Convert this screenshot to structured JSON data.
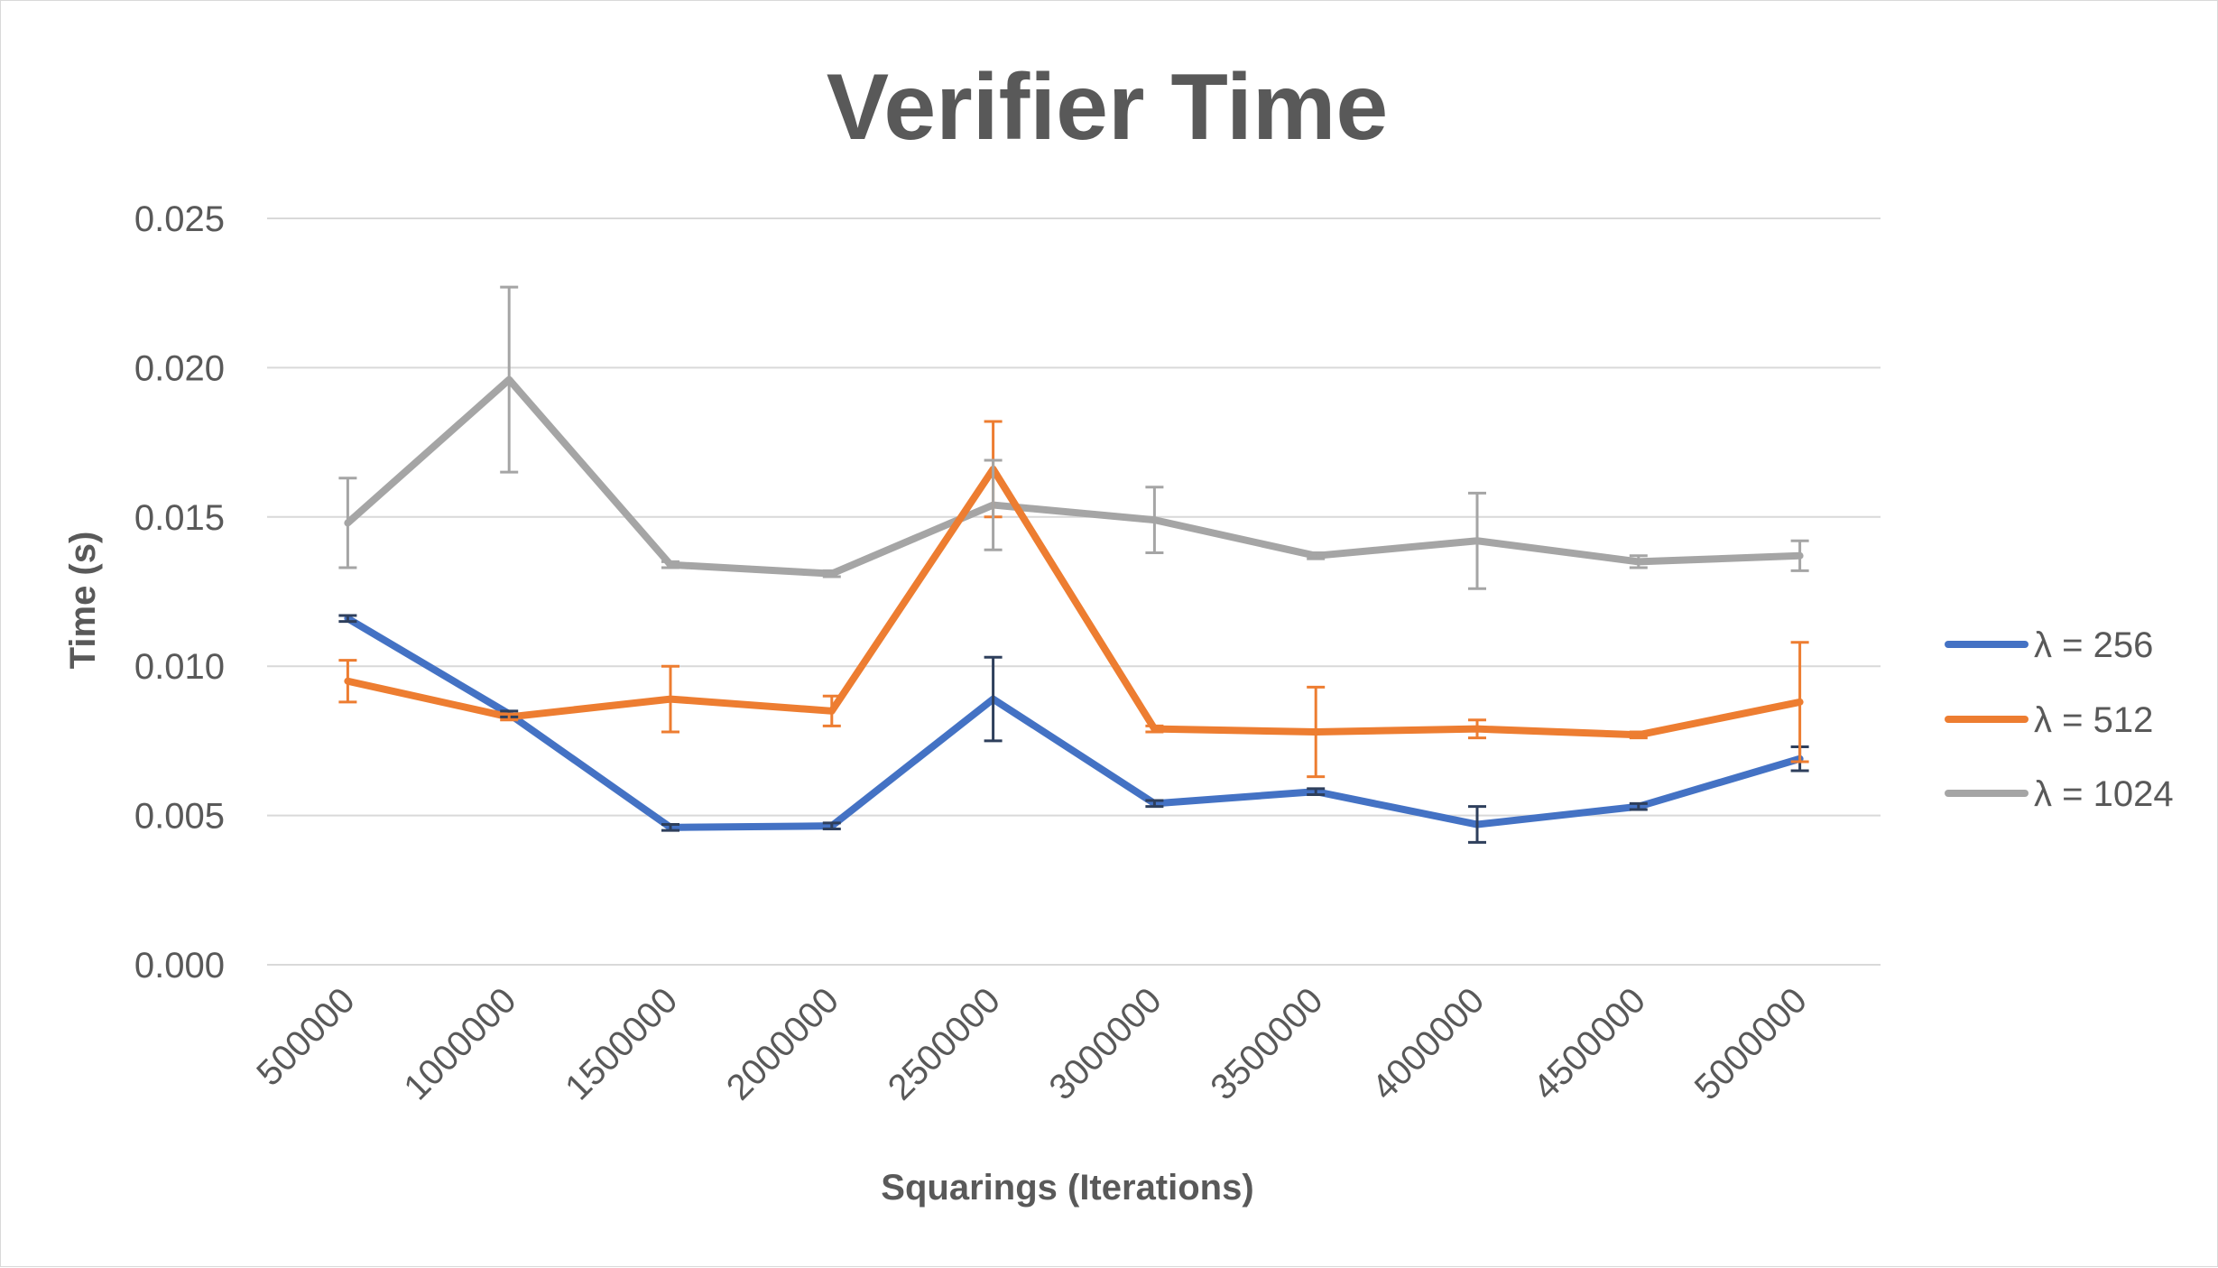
{
  "chart_data": {
    "type": "line",
    "title": "Verifier Time",
    "xlabel": "Squarings (Iterations)",
    "ylabel": "Time (s)",
    "ylim": [
      0,
      0.025
    ],
    "yticks": [
      "0.000",
      "0.005",
      "0.010",
      "0.015",
      "0.020",
      "0.025"
    ],
    "grid": true,
    "legend_position": "right",
    "categories": [
      "500000",
      "1000000",
      "1500000",
      "2000000",
      "2500000",
      "3000000",
      "3500000",
      "4000000",
      "4500000",
      "5000000"
    ],
    "series": [
      {
        "name": "λ = 256",
        "color": "#4472c4",
        "error_color": "#2e3f5c",
        "values": [
          0.0116,
          0.0084,
          0.0046,
          0.00465,
          0.0089,
          0.0054,
          0.0058,
          0.0047,
          0.0053,
          0.0069
        ],
        "errors": [
          0.0001,
          0.0001,
          0.0001,
          0.0001,
          0.0014,
          0.0001,
          0.0001,
          0.0006,
          0.0001,
          0.0004
        ]
      },
      {
        "name": "λ = 512",
        "color": "#ed7d31",
        "error_color": "#ed7d31",
        "values": [
          0.0095,
          0.0083,
          0.0089,
          0.0085,
          0.0166,
          0.0079,
          0.0078,
          0.0079,
          0.0077,
          0.0088
        ],
        "errors": [
          0.0007,
          0.0001,
          0.0011,
          0.0005,
          0.0016,
          0.0001,
          0.0015,
          0.0003,
          0.0001,
          0.002
        ]
      },
      {
        "name": "λ = 1024",
        "color": "#a5a5a5",
        "error_color": "#a5a5a5",
        "values": [
          0.0148,
          0.0196,
          0.0134,
          0.0131,
          0.0154,
          0.0149,
          0.0137,
          0.0142,
          0.0135,
          0.0137
        ],
        "errors": [
          0.0015,
          0.0031,
          0.0001,
          0.0001,
          0.0015,
          0.0011,
          0.0001,
          0.0016,
          0.0002,
          0.0005
        ]
      }
    ]
  }
}
